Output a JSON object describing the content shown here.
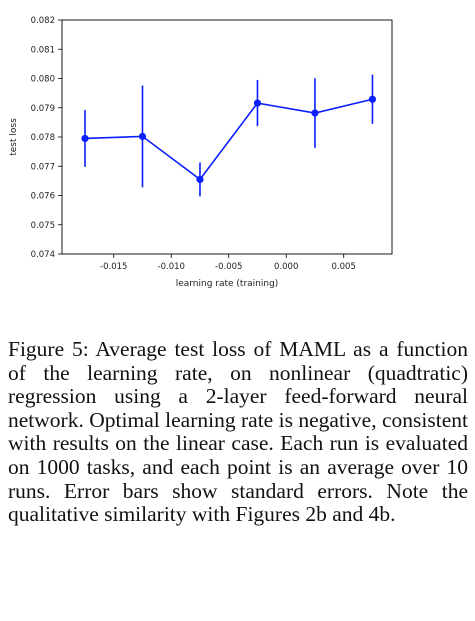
{
  "chart_data": {
    "type": "line",
    "xlabel": "learning rate (training)",
    "ylabel": "test loss",
    "xlim": [
      -0.0195,
      0.0092
    ],
    "ylim": [
      0.074,
      0.082
    ],
    "xticks": [
      "-0.015",
      "-0.010",
      "-0.005",
      "0.000",
      "0.005"
    ],
    "xtick_values": [
      -0.015,
      -0.01,
      -0.005,
      0.0,
      0.005
    ],
    "yticks": [
      "0.074",
      "0.075",
      "0.076",
      "0.077",
      "0.078",
      "0.079",
      "0.080",
      "0.081",
      "0.082"
    ],
    "ytick_values": [
      0.074,
      0.075,
      0.076,
      0.077,
      0.078,
      0.079,
      0.08,
      0.081,
      0.082
    ],
    "grid": false,
    "series": [
      {
        "color": "#0a1fff",
        "x": [
          -0.0175,
          -0.0125,
          -0.0075,
          -0.0025,
          0.0025,
          0.0075
        ],
        "y": [
          0.07795,
          0.07802,
          0.07655,
          0.07916,
          0.07882,
          0.07929
        ],
        "err": [
          0.00097,
          0.00174,
          0.00058,
          0.00079,
          0.00119,
          0.00084
        ]
      }
    ]
  },
  "caption": "Figure 5: Average test loss of MAML as a function of the learning rate, on nonlinear (quadtratic) regression using a 2-layer feed-forward neural network. Optimal learning rate is negative, consistent with results on the linear case. Each run is evaluated on 1000 tasks, and each point is an average over 10 runs. Error bars show standard errors. Note the qualitative similarity with Figures 2b and 4b."
}
